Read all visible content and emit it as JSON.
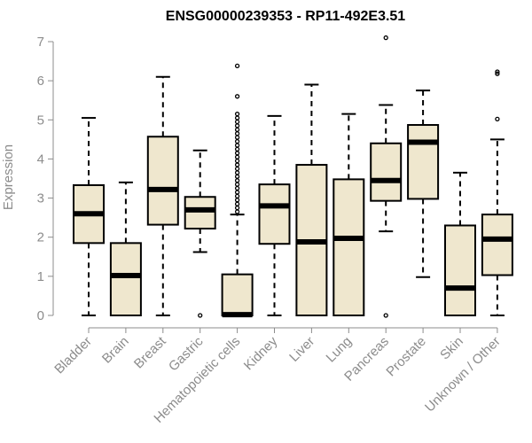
{
  "chart_data": {
    "type": "boxplot",
    "title": "ENSG00000239353 - RP11-492E3.51",
    "xlabel": "",
    "ylabel": "Expression",
    "ylim": [
      0,
      7
    ],
    "yticks": [
      "0",
      "1",
      "2",
      "3",
      "4",
      "5",
      "6",
      "7"
    ],
    "grid": false,
    "box_color": "#efe7ce",
    "categories": [
      "Bladder",
      "Brain",
      "Breast",
      "Gastric",
      "Hematopoietic cells",
      "Kidney",
      "Liver",
      "Lung",
      "Pancreas",
      "Prostate",
      "Skin",
      "Unknown / Other"
    ],
    "boxes": [
      {
        "category": "Bladder",
        "min": 0,
        "q1": 1.85,
        "median": 2.6,
        "q3": 3.33,
        "max": 5.05,
        "outliers": []
      },
      {
        "category": "Brain",
        "min": 0,
        "q1": 0,
        "median": 1.02,
        "q3": 1.85,
        "max": 3.4,
        "outliers": []
      },
      {
        "category": "Breast",
        "min": 0,
        "q1": 2.32,
        "median": 3.22,
        "q3": 4.57,
        "max": 6.1,
        "outliers": []
      },
      {
        "category": "Gastric",
        "min": 1.62,
        "q1": 2.22,
        "median": 2.7,
        "q3": 3.03,
        "max": 4.22,
        "outliers": [
          0
        ]
      },
      {
        "category": "Hematopoietic cells",
        "min": 0,
        "q1": 0,
        "median": 0.02,
        "q3": 1.05,
        "max": 2.58,
        "outliers": [
          2.65,
          2.75,
          2.85,
          2.95,
          3.05,
          3.15,
          3.25,
          3.35,
          3.45,
          3.55,
          3.65,
          3.75,
          3.85,
          3.95,
          4.05,
          4.15,
          4.25,
          4.35,
          4.45,
          4.55,
          4.65,
          4.75,
          4.85,
          4.95,
          5.05,
          5.15,
          5.6,
          6.38
        ]
      },
      {
        "category": "Kidney",
        "min": 0,
        "q1": 1.83,
        "median": 2.8,
        "q3": 3.35,
        "max": 5.1,
        "outliers": []
      },
      {
        "category": "Liver",
        "min": 0,
        "q1": 0,
        "median": 1.88,
        "q3": 3.85,
        "max": 5.9,
        "outliers": []
      },
      {
        "category": "Lung",
        "min": 0,
        "q1": 0,
        "median": 1.97,
        "q3": 3.48,
        "max": 5.15,
        "outliers": []
      },
      {
        "category": "Pancreas",
        "min": 2.15,
        "q1": 2.93,
        "median": 3.45,
        "q3": 4.4,
        "max": 5.38,
        "outliers": [
          0,
          7.1
        ]
      },
      {
        "category": "Prostate",
        "min": 0.98,
        "q1": 2.98,
        "median": 4.43,
        "q3": 4.87,
        "max": 5.75,
        "outliers": []
      },
      {
        "category": "Skin",
        "min": 0,
        "q1": 0,
        "median": 0.7,
        "q3": 2.3,
        "max": 3.65,
        "outliers": []
      },
      {
        "category": "Unknown / Other",
        "min": 0,
        "q1": 1.03,
        "median": 1.95,
        "q3": 2.58,
        "max": 4.5,
        "outliers": [
          5.02,
          6.18,
          6.23
        ]
      }
    ]
  }
}
